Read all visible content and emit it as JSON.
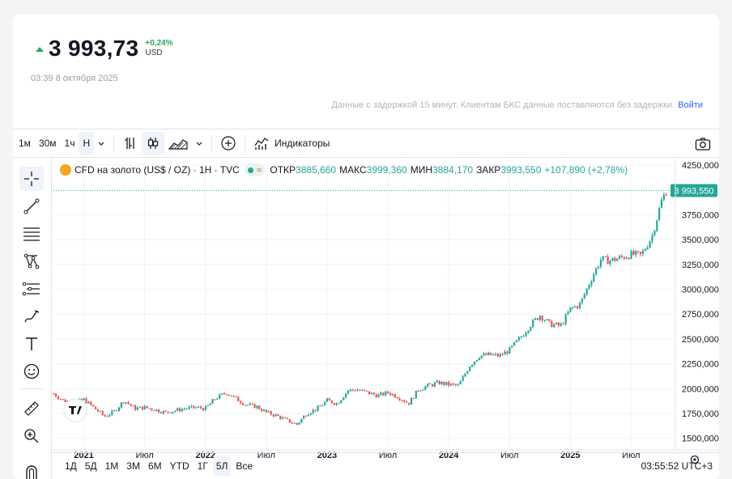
{
  "quote": {
    "price": "3 993,73",
    "change_pct": "+0,24%",
    "currency": "USD",
    "time": "03:39 8 октября 2025",
    "delay_note": "Данные с задержкой 15 минут. Клиентам БКС данные поставляются без задержки.",
    "login_link": "Войти"
  },
  "toolbar": {
    "intervals": [
      "1м",
      "30м",
      "1ч",
      "Н"
    ],
    "active_interval": "Н",
    "indicators_label": "Индикаторы"
  },
  "legend": {
    "symbol": "CFD на золото (US$ / OZ) · 1H · TVC",
    "open_label": "ОТКР",
    "open": "3885,660",
    "high_label": "МАКС",
    "high": "3999,360",
    "low_label": "МИН",
    "low": "3884,170",
    "close_label": "ЗАКР",
    "close": "3993,550",
    "change": "+107,890 (+2,78%)"
  },
  "ranges": {
    "items": [
      "1Д",
      "5Д",
      "1М",
      "3М",
      "6М",
      "YTD",
      "1Г",
      "5Л",
      "Все"
    ],
    "active": "5Л"
  },
  "clock": "03:55:52 UTC+3",
  "colors": {
    "up": "#26a69a",
    "down": "#ef5350",
    "accent": "#22a55b",
    "logo": "#f5a623"
  },
  "icons": {
    "left_tools": [
      "crosshair-icon",
      "trend-line-icon",
      "fib-retracement-icon",
      "pattern-icon",
      "prediction-icon",
      "brush-icon",
      "text-icon",
      "emoji-icon",
      "ruler-icon",
      "zoom-icon",
      "magnet-icon"
    ]
  },
  "chart_data": {
    "type": "candlestick",
    "ylim": [
      1400,
      4250
    ],
    "yticks": [
      "4250,000",
      "3750,000",
      "3500,000",
      "3250,000",
      "3000,000",
      "2750,000",
      "2500,000",
      "2250,000",
      "2000,000",
      "1750,000",
      "1500,000"
    ],
    "ytick_values": [
      4250,
      3750,
      3500,
      3250,
      3000,
      2750,
      2500,
      2250,
      2000,
      1750,
      1500
    ],
    "last_price_label": "3 993,550",
    "last_price": 3993.55,
    "xticks": [
      "2021",
      "Июл",
      "2022",
      "Июл",
      "2023",
      "Июл",
      "2024",
      "Июл",
      "2025",
      "Июл"
    ],
    "xtick_times": [
      2021.0,
      2021.5,
      2022.0,
      2022.5,
      2023.0,
      2023.5,
      2024.0,
      2024.5,
      2025.0,
      2025.5
    ],
    "xlim": [
      2020.75,
      2025.85
    ],
    "price_path": [
      [
        2020.75,
        1950
      ],
      [
        2020.83,
        1880
      ],
      [
        2020.92,
        1860
      ],
      [
        2021.0,
        1890
      ],
      [
        2021.08,
        1810
      ],
      [
        2021.17,
        1720
      ],
      [
        2021.25,
        1770
      ],
      [
        2021.33,
        1880
      ],
      [
        2021.42,
        1800
      ],
      [
        2021.5,
        1810
      ],
      [
        2021.58,
        1790
      ],
      [
        2021.67,
        1760
      ],
      [
        2021.75,
        1780
      ],
      [
        2021.83,
        1800
      ],
      [
        2021.92,
        1810
      ],
      [
        2022.0,
        1800
      ],
      [
        2022.08,
        1900
      ],
      [
        2022.17,
        1960
      ],
      [
        2022.25,
        1900
      ],
      [
        2022.33,
        1840
      ],
      [
        2022.42,
        1820
      ],
      [
        2022.5,
        1760
      ],
      [
        2022.58,
        1730
      ],
      [
        2022.67,
        1680
      ],
      [
        2022.75,
        1640
      ],
      [
        2022.83,
        1750
      ],
      [
        2022.92,
        1800
      ],
      [
        2023.0,
        1880
      ],
      [
        2023.08,
        1850
      ],
      [
        2023.17,
        1980
      ],
      [
        2023.25,
        1990
      ],
      [
        2023.33,
        1960
      ],
      [
        2023.42,
        1930
      ],
      [
        2023.5,
        1960
      ],
      [
        2023.58,
        1920
      ],
      [
        2023.67,
        1850
      ],
      [
        2023.75,
        1990
      ],
      [
        2023.83,
        2030
      ],
      [
        2023.92,
        2060
      ],
      [
        2024.0,
        2040
      ],
      [
        2024.08,
        2030
      ],
      [
        2024.17,
        2230
      ],
      [
        2024.25,
        2330
      ],
      [
        2024.33,
        2340
      ],
      [
        2024.42,
        2330
      ],
      [
        2024.5,
        2390
      ],
      [
        2024.58,
        2500
      ],
      [
        2024.67,
        2640
      ],
      [
        2024.75,
        2740
      ],
      [
        2024.83,
        2650
      ],
      [
        2024.92,
        2630
      ],
      [
        2025.0,
        2800
      ],
      [
        2025.08,
        2850
      ],
      [
        2025.17,
        3100
      ],
      [
        2025.25,
        3300
      ],
      [
        2025.33,
        3290
      ],
      [
        2025.42,
        3320
      ],
      [
        2025.5,
        3350
      ],
      [
        2025.58,
        3340
      ],
      [
        2025.67,
        3530
      ],
      [
        2025.75,
        3890
      ],
      [
        2025.79,
        3993.55
      ]
    ]
  }
}
